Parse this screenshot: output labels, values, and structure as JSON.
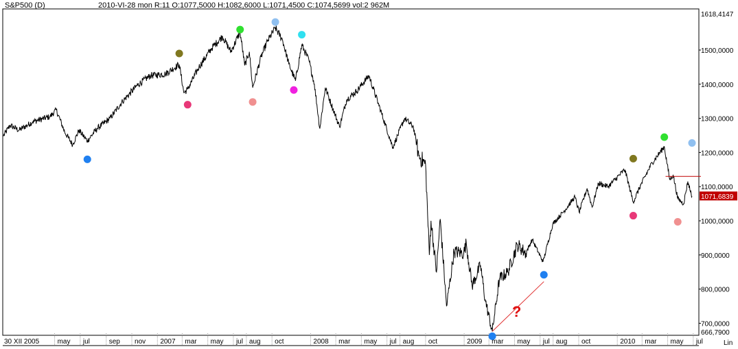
{
  "header": {
    "symbol": "S&P500 (D)",
    "info": "2010-VI-28  mon R:11 O:1077,5000 H:1082,6000 L:1071,4500 C:1074,5699 vol:2 962M"
  },
  "scale_mode": "Lin",
  "question_mark": "?",
  "colors": {
    "price": "#000000",
    "grid": "#c8c8c8",
    "last_price_bg": "#c00000",
    "resistance_line": "#c00000",
    "annotation_line": "#e03030",
    "question_mark": "#e01010"
  },
  "chart_data": {
    "type": "line",
    "ylim": [
      666.79,
      1618.4147
    ],
    "ylim_labels": [
      "666,7900",
      "1618,4147"
    ],
    "y_ticks": [
      {
        "value": 700,
        "label": "700,0000"
      },
      {
        "value": 800,
        "label": "800,0000"
      },
      {
        "value": 900,
        "label": "900,0000"
      },
      {
        "value": 1000,
        "label": "1000,0000"
      },
      {
        "value": 1100,
        "label": "1100,0000"
      },
      {
        "value": 1200,
        "label": "1200,0000"
      },
      {
        "value": 1300,
        "label": "1300,0000"
      },
      {
        "value": 1400,
        "label": "1400,0000"
      },
      {
        "value": 1500,
        "label": "1500,0000"
      }
    ],
    "xlim": [
      "2005-12-30",
      "2010-06-28"
    ],
    "x_ticks": [
      {
        "date": "2005-12-30",
        "label": "30 XII 2005"
      },
      {
        "date": "2006-05-01",
        "label": "may"
      },
      {
        "date": "2006-07-01",
        "label": "jul"
      },
      {
        "date": "2006-09-01",
        "label": "sep"
      },
      {
        "date": "2006-11-01",
        "label": "nov"
      },
      {
        "date": "2007-01-01",
        "label": "2007"
      },
      {
        "date": "2007-03-01",
        "label": "mar"
      },
      {
        "date": "2007-05-01",
        "label": "may"
      },
      {
        "date": "2007-07-01",
        "label": "jul"
      },
      {
        "date": "2007-08-01",
        "label": "aug"
      },
      {
        "date": "2007-10-01",
        "label": "oct"
      },
      {
        "date": "2008-01-01",
        "label": "2008"
      },
      {
        "date": "2008-03-01",
        "label": "mar"
      },
      {
        "date": "2008-05-01",
        "label": "may"
      },
      {
        "date": "2008-07-01",
        "label": "jul"
      },
      {
        "date": "2008-08-01",
        "label": "aug"
      },
      {
        "date": "2008-10-01",
        "label": "oct"
      },
      {
        "date": "2009-01-01",
        "label": "2009"
      },
      {
        "date": "2009-03-01",
        "label": "mar"
      },
      {
        "date": "2009-05-01",
        "label": "may"
      },
      {
        "date": "2009-07-01",
        "label": "jul"
      },
      {
        "date": "2009-08-01",
        "label": "aug"
      },
      {
        "date": "2009-10-01",
        "label": "oct"
      },
      {
        "date": "2010-01-01",
        "label": "2010"
      },
      {
        "date": "2010-03-01",
        "label": "mar"
      },
      {
        "date": "2010-05-01",
        "label": "may"
      },
      {
        "date": "2010-07-01",
        "label": "jul"
      }
    ],
    "last_price": {
      "value": 1071.6839,
      "label": "1071,6839"
    },
    "resistance": {
      "value": 1130,
      "start": "2010-04-26",
      "end": "2010-06-28"
    },
    "annotation_line": {
      "start": [
        "2009-03-09",
        676
      ],
      "end": [
        "2009-07-10",
        822
      ]
    },
    "question_mark_at": [
      "2009-05-05",
      735
    ],
    "series": [
      {
        "points": [
          [
            "2005-12-30",
            1248
          ],
          [
            "2006-01-15",
            1280
          ],
          [
            "2006-02-05",
            1265
          ],
          [
            "2006-03-10",
            1290
          ],
          [
            "2006-04-20",
            1305
          ],
          [
            "2006-05-05",
            1325
          ],
          [
            "2006-05-25",
            1260
          ],
          [
            "2006-06-13",
            1223
          ],
          [
            "2006-06-28",
            1265
          ],
          [
            "2006-07-18",
            1234
          ],
          [
            "2006-08-10",
            1270
          ],
          [
            "2006-09-10",
            1300
          ],
          [
            "2006-10-10",
            1350
          ],
          [
            "2006-11-15",
            1398
          ],
          [
            "2006-12-15",
            1425
          ],
          [
            "2007-01-20",
            1430
          ],
          [
            "2007-02-22",
            1458
          ],
          [
            "2007-03-05",
            1375
          ],
          [
            "2007-03-14",
            1385
          ],
          [
            "2007-04-10",
            1450
          ],
          [
            "2007-05-10",
            1505
          ],
          [
            "2007-06-05",
            1540
          ],
          [
            "2007-06-25",
            1495
          ],
          [
            "2007-07-17",
            1553
          ],
          [
            "2007-07-28",
            1455
          ],
          [
            "2007-08-08",
            1495
          ],
          [
            "2007-08-16",
            1390
          ],
          [
            "2007-09-05",
            1480
          ],
          [
            "2007-09-20",
            1525
          ],
          [
            "2007-10-09",
            1565
          ],
          [
            "2007-10-26",
            1530
          ],
          [
            "2007-11-10",
            1460
          ],
          [
            "2007-11-26",
            1410
          ],
          [
            "2007-12-11",
            1515
          ],
          [
            "2007-12-28",
            1470
          ],
          [
            "2008-01-10",
            1400
          ],
          [
            "2008-01-23",
            1270
          ],
          [
            "2008-02-05",
            1390
          ],
          [
            "2008-03-10",
            1275
          ],
          [
            "2008-03-27",
            1355
          ],
          [
            "2008-04-20",
            1380
          ],
          [
            "2008-05-19",
            1425
          ],
          [
            "2008-06-10",
            1345
          ],
          [
            "2008-07-15",
            1215
          ],
          [
            "2008-08-12",
            1300
          ],
          [
            "2008-09-02",
            1275
          ],
          [
            "2008-09-15",
            1190
          ],
          [
            "2008-10-01",
            1165
          ],
          [
            "2008-10-10",
            900
          ],
          [
            "2008-10-14",
            1000
          ],
          [
            "2008-10-27",
            850
          ],
          [
            "2008-11-05",
            1005
          ],
          [
            "2008-11-20",
            750
          ],
          [
            "2008-12-08",
            910
          ],
          [
            "2008-12-31",
            905
          ],
          [
            "2009-01-06",
            935
          ],
          [
            "2009-01-20",
            810
          ],
          [
            "2009-02-09",
            870
          ],
          [
            "2009-02-20",
            770
          ],
          [
            "2009-03-09",
            676
          ],
          [
            "2009-03-26",
            830
          ],
          [
            "2009-04-15",
            850
          ],
          [
            "2009-05-08",
            930
          ],
          [
            "2009-05-28",
            905
          ],
          [
            "2009-06-12",
            945
          ],
          [
            "2009-07-08",
            880
          ],
          [
            "2009-07-31",
            990
          ],
          [
            "2009-08-28",
            1030
          ],
          [
            "2009-09-22",
            1070
          ],
          [
            "2009-10-02",
            1025
          ],
          [
            "2009-10-21",
            1095
          ],
          [
            "2009-11-02",
            1040
          ],
          [
            "2009-11-17",
            1110
          ],
          [
            "2009-12-10",
            1100
          ],
          [
            "2010-01-19",
            1150
          ],
          [
            "2010-02-08",
            1055
          ],
          [
            "2010-02-26",
            1105
          ],
          [
            "2010-03-25",
            1170
          ],
          [
            "2010-04-23",
            1217
          ],
          [
            "2010-05-06",
            1120
          ],
          [
            "2010-05-14",
            1135
          ],
          [
            "2010-05-25",
            1065
          ],
          [
            "2010-06-08",
            1050
          ],
          [
            "2010-06-18",
            1115
          ],
          [
            "2010-06-28",
            1072
          ]
        ]
      }
    ],
    "markers": [
      {
        "date": "2006-07-18",
        "value": 1180,
        "color": "#2080f0"
      },
      {
        "date": "2007-02-22",
        "value": 1490,
        "color": "#807820"
      },
      {
        "date": "2007-03-14",
        "value": 1340,
        "color": "#e83878"
      },
      {
        "date": "2007-07-17",
        "value": 1560,
        "color": "#30e030"
      },
      {
        "date": "2007-08-16",
        "value": 1348,
        "color": "#f09090"
      },
      {
        "date": "2007-10-09",
        "value": 1582,
        "color": "#90c0f0"
      },
      {
        "date": "2007-11-22",
        "value": 1383,
        "color": "#f020e0"
      },
      {
        "date": "2007-12-11",
        "value": 1545,
        "color": "#30e0f0"
      },
      {
        "date": "2009-03-09",
        "value": 662,
        "color": "#2080f0"
      },
      {
        "date": "2009-07-10",
        "value": 842,
        "color": "#2080f0"
      },
      {
        "date": "2010-02-08",
        "value": 1182,
        "color": "#807820"
      },
      {
        "date": "2010-02-08",
        "value": 1015,
        "color": "#e83878"
      },
      {
        "date": "2010-04-23",
        "value": 1245,
        "color": "#30e030"
      },
      {
        "date": "2010-05-25",
        "value": 997,
        "color": "#f09090"
      },
      {
        "date": "2010-06-28",
        "value": 1228,
        "color": "#90c0f0"
      }
    ]
  }
}
